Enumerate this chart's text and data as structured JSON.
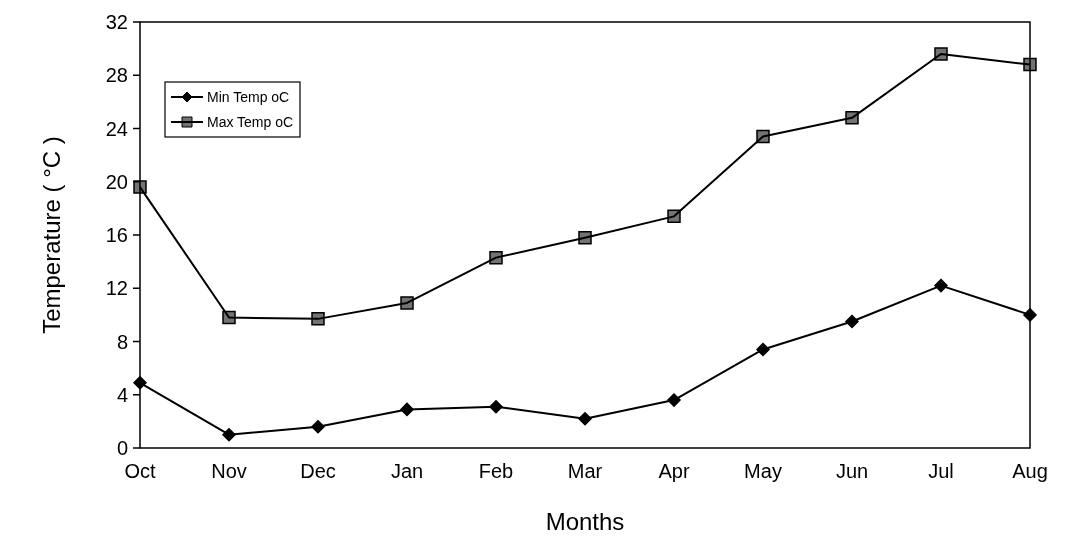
{
  "chart_data": {
    "type": "line",
    "xlabel": "Months",
    "ylabel": "Temperature ( °C )",
    "categories": [
      "Oct",
      "Nov",
      "Dec",
      "Jan",
      "Feb",
      "Mar",
      "Apr",
      "May",
      "Jun",
      "Jul",
      "Aug"
    ],
    "series": [
      {
        "name": "Min Temp oC",
        "color": "#000000",
        "marker": "diamond",
        "values": [
          4.9,
          1.0,
          1.6,
          2.9,
          3.1,
          2.2,
          3.6,
          7.4,
          9.5,
          12.2,
          10.0
        ]
      },
      {
        "name": "Max Temp oC",
        "color": "#000000",
        "marker": "square",
        "values": [
          19.6,
          9.8,
          9.7,
          10.9,
          14.3,
          15.8,
          17.4,
          23.4,
          24.8,
          29.6,
          28.8
        ]
      }
    ],
    "ylim": [
      0,
      32
    ],
    "yticks": [
      0,
      4,
      8,
      12,
      16,
      20,
      24,
      28,
      32
    ],
    "grid": false,
    "legend": "top left",
    "line_style": "solid"
  }
}
